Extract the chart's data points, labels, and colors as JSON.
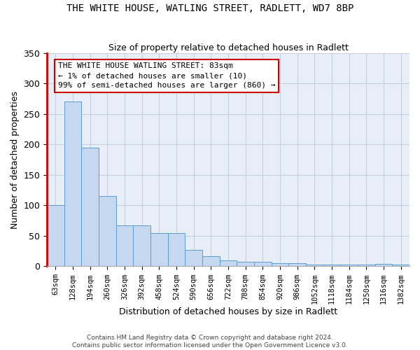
{
  "title": "THE WHITE HOUSE, WATLING STREET, RADLETT, WD7 8BP",
  "subtitle": "Size of property relative to detached houses in Radlett",
  "xlabel": "Distribution of detached houses by size in Radlett",
  "ylabel": "Number of detached properties",
  "bar_color": "#c5d8f0",
  "bar_edge_color": "#5b9bd5",
  "background_color": "#ffffff",
  "plot_bg_color": "#e8eef8",
  "grid_color": "#c8d0e0",
  "annotation_box_color": "#ffffff",
  "annotation_border_color": "#cc0000",
  "annotation_text_line1": "THE WHITE HOUSE WATLING STREET: 83sqm",
  "annotation_text_line2": "← 1% of detached houses are smaller (10)",
  "annotation_text_line3": "99% of semi-detached houses are larger (860) →",
  "footer_line1": "Contains HM Land Registry data © Crown copyright and database right 2024.",
  "footer_line2": "Contains public sector information licensed under the Open Government Licence v3.0.",
  "categories": [
    "63sqm",
    "128sqm",
    "194sqm",
    "260sqm",
    "326sqm",
    "392sqm",
    "458sqm",
    "524sqm",
    "590sqm",
    "656sqm",
    "722sqm",
    "788sqm",
    "854sqm",
    "920sqm",
    "986sqm",
    "1052sqm",
    "1118sqm",
    "1184sqm",
    "1250sqm",
    "1316sqm",
    "1382sqm"
  ],
  "values": [
    100,
    270,
    195,
    115,
    67,
    67,
    54,
    54,
    27,
    17,
    10,
    8,
    8,
    5,
    5,
    3,
    3,
    3,
    3,
    4,
    3
  ],
  "ylim": [
    0,
    350
  ],
  "yticks": [
    0,
    50,
    100,
    150,
    200,
    250,
    300,
    350
  ],
  "highlight_color": "#cc0000",
  "figsize": [
    6.0,
    5.0
  ],
  "dpi": 100
}
